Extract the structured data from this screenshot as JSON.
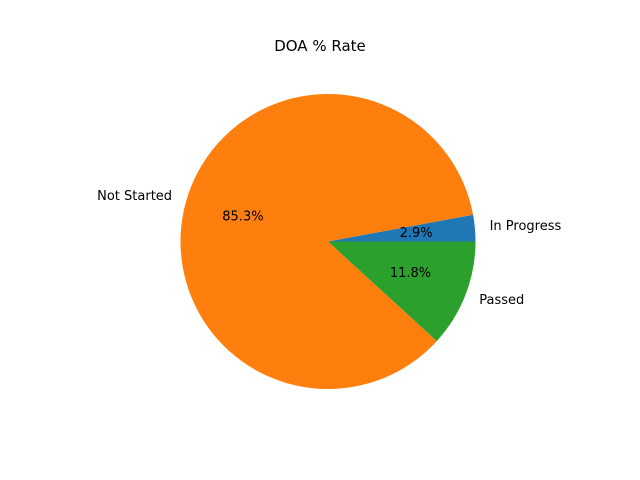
{
  "chart_data": {
    "type": "pie",
    "title": "DOA % Rate",
    "slices": [
      {
        "label": "In Progress",
        "value": 2.9,
        "pct_label": "2.9%",
        "color": "#1f77b4"
      },
      {
        "label": "Not Started",
        "value": 85.3,
        "pct_label": "85.3%",
        "color": "#ff7f0e"
      },
      {
        "label": "Passed",
        "value": 11.8,
        "pct_label": "11.8%",
        "color": "#2ca02c"
      }
    ],
    "start_angle_deg": 0,
    "direction": "counterclockwise"
  }
}
